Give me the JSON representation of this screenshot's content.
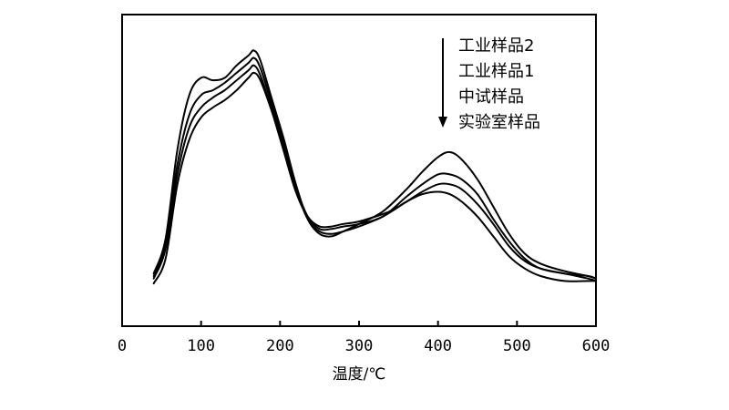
{
  "chart_data": {
    "type": "line",
    "xlabel": "温度/℃",
    "ylabel": "",
    "xlim": [
      0,
      600
    ],
    "x_ticks": [
      "0",
      "100",
      "200",
      "300",
      "400",
      "500",
      "600"
    ],
    "y_ticks_visible": false,
    "grid": false,
    "legend_position": "top-right",
    "legend_arrow_direction": "down",
    "line_color": "#000000",
    "series": [
      {
        "name": "工业样品2",
        "points": [
          [
            40,
            8
          ],
          [
            55,
            22
          ],
          [
            70,
            58
          ],
          [
            85,
            80
          ],
          [
            100,
            87
          ],
          [
            115,
            86
          ],
          [
            130,
            87
          ],
          [
            145,
            92
          ],
          [
            160,
            96
          ],
          [
            167,
            98
          ],
          [
            175,
            94
          ],
          [
            190,
            78
          ],
          [
            205,
            62
          ],
          [
            220,
            44
          ],
          [
            235,
            30
          ],
          [
            250,
            24
          ],
          [
            265,
            23
          ],
          [
            280,
            25
          ],
          [
            300,
            28
          ],
          [
            330,
            33
          ],
          [
            360,
            42
          ],
          [
            380,
            49
          ],
          [
            400,
            55
          ],
          [
            415,
            57
          ],
          [
            430,
            54
          ],
          [
            450,
            46
          ],
          [
            470,
            35
          ],
          [
            490,
            24
          ],
          [
            510,
            16
          ],
          [
            530,
            12
          ],
          [
            560,
            9
          ],
          [
            590,
            7
          ],
          [
            600,
            6
          ]
        ]
      },
      {
        "name": "工业样品1",
        "points": [
          [
            40,
            7
          ],
          [
            55,
            20
          ],
          [
            70,
            52
          ],
          [
            85,
            72
          ],
          [
            100,
            80
          ],
          [
            115,
            82
          ],
          [
            130,
            85
          ],
          [
            145,
            89
          ],
          [
            160,
            93
          ],
          [
            167,
            95
          ],
          [
            175,
            91
          ],
          [
            190,
            76
          ],
          [
            205,
            60
          ],
          [
            220,
            43
          ],
          [
            235,
            31
          ],
          [
            250,
            26
          ],
          [
            265,
            26
          ],
          [
            280,
            27
          ],
          [
            300,
            28
          ],
          [
            330,
            31
          ],
          [
            360,
            39
          ],
          [
            380,
            44
          ],
          [
            400,
            48
          ],
          [
            415,
            48
          ],
          [
            430,
            46
          ],
          [
            450,
            40
          ],
          [
            470,
            30
          ],
          [
            490,
            21
          ],
          [
            510,
            14
          ],
          [
            530,
            10
          ],
          [
            560,
            8
          ],
          [
            590,
            7
          ],
          [
            600,
            6
          ]
        ]
      },
      {
        "name": "中试样品",
        "points": [
          [
            40,
            6
          ],
          [
            55,
            18
          ],
          [
            70,
            48
          ],
          [
            85,
            67
          ],
          [
            100,
            75
          ],
          [
            115,
            79
          ],
          [
            130,
            82
          ],
          [
            145,
            86
          ],
          [
            160,
            90
          ],
          [
            167,
            92
          ],
          [
            175,
            88
          ],
          [
            190,
            74
          ],
          [
            205,
            58
          ],
          [
            220,
            42
          ],
          [
            235,
            30
          ],
          [
            250,
            25
          ],
          [
            265,
            24
          ],
          [
            280,
            25
          ],
          [
            300,
            27
          ],
          [
            330,
            31
          ],
          [
            360,
            37
          ],
          [
            380,
            41
          ],
          [
            400,
            44
          ],
          [
            415,
            44
          ],
          [
            430,
            42
          ],
          [
            450,
            36
          ],
          [
            470,
            28
          ],
          [
            490,
            19
          ],
          [
            510,
            13
          ],
          [
            530,
            10
          ],
          [
            560,
            8
          ],
          [
            590,
            6
          ],
          [
            600,
            5
          ]
        ]
      },
      {
        "name": "实验室样品",
        "points": [
          [
            40,
            4
          ],
          [
            55,
            14
          ],
          [
            70,
            44
          ],
          [
            85,
            62
          ],
          [
            100,
            71
          ],
          [
            115,
            75
          ],
          [
            130,
            78
          ],
          [
            145,
            82
          ],
          [
            160,
            87
          ],
          [
            167,
            89
          ],
          [
            175,
            86
          ],
          [
            190,
            73
          ],
          [
            205,
            57
          ],
          [
            220,
            41
          ],
          [
            235,
            31
          ],
          [
            250,
            27
          ],
          [
            265,
            27
          ],
          [
            280,
            28
          ],
          [
            300,
            29
          ],
          [
            330,
            32
          ],
          [
            345,
            34
          ],
          [
            360,
            37
          ],
          [
            380,
            40
          ],
          [
            400,
            41
          ],
          [
            415,
            40
          ],
          [
            430,
            37
          ],
          [
            450,
            31
          ],
          [
            470,
            23
          ],
          [
            490,
            15
          ],
          [
            510,
            10
          ],
          [
            530,
            7
          ],
          [
            560,
            5
          ],
          [
            590,
            5
          ],
          [
            600,
            5
          ]
        ]
      }
    ]
  }
}
